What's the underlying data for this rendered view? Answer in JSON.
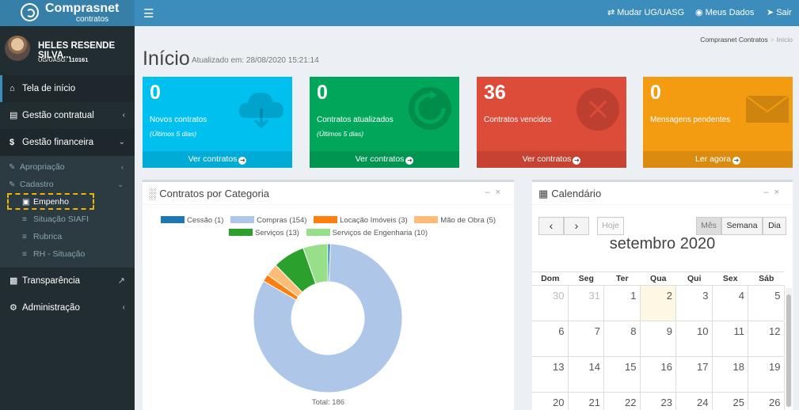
{
  "app": {
    "name": "Comprasnet",
    "sub": "contratos"
  },
  "topbar": {
    "mudar": "Mudar UG/UASG",
    "meus_dados": "Meus Dados",
    "sair": "Sair"
  },
  "user": {
    "name": "HELES RESENDE SILVA...",
    "uasg_label": "UG/UASG:",
    "uasg_value": "110161"
  },
  "sidebar": {
    "items": [
      {
        "label": "Tela de início",
        "icon": "home-icon"
      },
      {
        "label": "Gestão contratual",
        "icon": "file-icon"
      },
      {
        "label": "Gestão financeira",
        "icon": "dollar-icon"
      },
      {
        "label": "Transparência",
        "icon": "id-card-icon"
      },
      {
        "label": "Administração",
        "icon": "cogs-icon"
      }
    ],
    "sub": {
      "apropriacao": "Apropriação",
      "cadastro": "Cadastro",
      "empenho": "Empenho",
      "situacao": "Situação SIAFI",
      "rubrica": "Rubrica",
      "rh": "RH - Situação"
    }
  },
  "header": {
    "title": "Início",
    "subtitle": "Atualizado em: 28/08/2020 15:21:14",
    "breadcrumb": [
      "Comprasnet Contratos",
      "Início"
    ]
  },
  "stats": [
    {
      "value": "0",
      "label": "Novos contratos",
      "sub": "(Últimos 5 dias)",
      "footer": "Ver contratos",
      "color": "#00c0ef",
      "icon": "cloud-download-icon"
    },
    {
      "value": "0",
      "label": "Contratos atualizados",
      "sub": "(Últimos 5 dias)",
      "footer": "Ver contratos",
      "color": "#00a65a",
      "icon": "refresh-icon"
    },
    {
      "value": "36",
      "label": "Contratos vencidos",
      "sub": "",
      "footer": "Ver contratos",
      "color": "#dd4b39",
      "icon": "times-circle-icon"
    },
    {
      "value": "0",
      "label": "Mensagens pendentes",
      "sub": "",
      "footer": "Ler agora",
      "color": "#f39c12",
      "icon": "envelope-icon"
    }
  ],
  "chart_panel": {
    "title": "Contratos por Categoria",
    "total": "Total: 186"
  },
  "chart_data": {
    "type": "pie",
    "categories": [
      "Cessão",
      "Compras",
      "Locação Imóveis",
      "Mão de Obra",
      "Serviços",
      "Serviços de Engenharia"
    ],
    "values": [
      1,
      154,
      3,
      5,
      13,
      10
    ],
    "legend": [
      "Cessão (1)",
      "Compras (154)",
      "Locação Imóveis (3)",
      "Mão de Obra (5)",
      "Serviços (13)",
      "Serviços de Engenharia (10)"
    ],
    "colors": [
      "#1f77b4",
      "#aec7e8",
      "#ff7f0e",
      "#ffbb78",
      "#2ca02c",
      "#98df8a"
    ],
    "legend_position": "top",
    "hole": "doughnut"
  },
  "calendar": {
    "title": "Calendário",
    "today_btn": "Hoje",
    "views": [
      "Mês",
      "Semana",
      "Dia"
    ],
    "month": "setembro 2020",
    "weekdays": [
      "Dom",
      "Seg",
      "Ter",
      "Qua",
      "Qui",
      "Sex",
      "Sáb"
    ],
    "weeks": [
      [
        "30",
        "31",
        "1",
        "2",
        "3",
        "4",
        "5"
      ],
      [
        "6",
        "7",
        "8",
        "9",
        "10",
        "11",
        "12"
      ],
      [
        "13",
        "14",
        "15",
        "16",
        "17",
        "18",
        "19"
      ],
      [
        "20",
        "21",
        "22",
        "23",
        "24",
        "25",
        "26"
      ]
    ]
  }
}
